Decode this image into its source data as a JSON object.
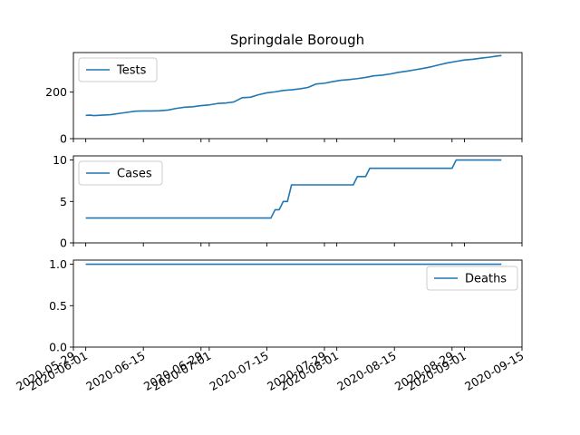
{
  "chart_data": {
    "type": "line",
    "title": "Springdale Borough",
    "x_axis": {
      "type": "date",
      "range": [
        "2020-05-29",
        "2020-09-15"
      ],
      "tick_labels": [
        "2020-05-29",
        "2020-06-01",
        "2020-06-15",
        "2020-06-29",
        "2020-07-01",
        "2020-07-15",
        "2020-07-29",
        "2020-08-01",
        "2020-08-15",
        "2020-08-29",
        "2020-09-01",
        "2020-09-15"
      ]
    },
    "legend_placement": [
      "upper-left",
      "upper-left",
      "right"
    ],
    "grid": false,
    "line_color": "#1f77b4",
    "panels": [
      {
        "name": "Tests",
        "ylim": [
          0,
          370
        ],
        "y_ticks": [
          "0",
          "200"
        ],
        "points": [
          [
            "2020-06-01",
            100
          ],
          [
            "2020-06-02",
            101
          ],
          [
            "2020-06-03",
            99
          ],
          [
            "2020-06-05",
            101
          ],
          [
            "2020-06-07",
            103
          ],
          [
            "2020-06-09",
            108
          ],
          [
            "2020-06-11",
            113
          ],
          [
            "2020-06-13",
            118
          ],
          [
            "2020-06-15",
            119
          ],
          [
            "2020-06-17",
            119
          ],
          [
            "2020-06-19",
            120
          ],
          [
            "2020-06-21",
            123
          ],
          [
            "2020-06-23",
            130
          ],
          [
            "2020-06-25",
            135
          ],
          [
            "2020-06-27",
            137
          ],
          [
            "2020-06-29",
            142
          ],
          [
            "2020-07-01",
            145
          ],
          [
            "2020-07-03",
            151
          ],
          [
            "2020-07-05",
            153
          ],
          [
            "2020-07-07",
            158
          ],
          [
            "2020-07-09",
            176
          ],
          [
            "2020-07-11",
            178
          ],
          [
            "2020-07-13",
            189
          ],
          [
            "2020-07-15",
            197
          ],
          [
            "2020-07-17",
            201
          ],
          [
            "2020-07-19",
            207
          ],
          [
            "2020-07-21",
            210
          ],
          [
            "2020-07-23",
            214
          ],
          [
            "2020-07-25",
            220
          ],
          [
            "2020-07-27",
            235
          ],
          [
            "2020-07-29",
            238
          ],
          [
            "2020-07-31",
            245
          ],
          [
            "2020-08-02",
            251
          ],
          [
            "2020-08-04",
            254
          ],
          [
            "2020-08-06",
            258
          ],
          [
            "2020-08-08",
            263
          ],
          [
            "2020-08-10",
            270
          ],
          [
            "2020-08-12",
            273
          ],
          [
            "2020-08-14",
            278
          ],
          [
            "2020-08-16",
            285
          ],
          [
            "2020-08-18",
            290
          ],
          [
            "2020-08-20",
            296
          ],
          [
            "2020-08-22",
            302
          ],
          [
            "2020-08-24",
            309
          ],
          [
            "2020-08-26",
            318
          ],
          [
            "2020-08-28",
            326
          ],
          [
            "2020-08-30",
            332
          ],
          [
            "2020-09-01",
            338
          ],
          [
            "2020-09-03",
            341
          ],
          [
            "2020-09-05",
            346
          ],
          [
            "2020-09-07",
            350
          ],
          [
            "2020-09-09",
            355
          ],
          [
            "2020-09-10",
            357
          ]
        ]
      },
      {
        "name": "Cases",
        "ylim": [
          0,
          10.5
        ],
        "y_ticks": [
          "0",
          "5",
          "10"
        ],
        "points": [
          [
            "2020-06-01",
            3
          ],
          [
            "2020-07-16",
            3
          ],
          [
            "2020-07-17",
            4
          ],
          [
            "2020-07-18",
            4
          ],
          [
            "2020-07-19",
            5
          ],
          [
            "2020-07-20",
            5
          ],
          [
            "2020-07-21",
            7
          ],
          [
            "2020-08-05",
            7
          ],
          [
            "2020-08-06",
            8
          ],
          [
            "2020-08-08",
            8
          ],
          [
            "2020-08-09",
            9
          ],
          [
            "2020-08-29",
            9
          ],
          [
            "2020-08-30",
            10
          ],
          [
            "2020-09-10",
            10
          ]
        ]
      },
      {
        "name": "Deaths",
        "ylim": [
          0,
          1.05
        ],
        "y_ticks": [
          "0.0",
          "0.5",
          "1.0"
        ],
        "points": [
          [
            "2020-06-01",
            1
          ],
          [
            "2020-09-10",
            1
          ]
        ]
      }
    ]
  }
}
